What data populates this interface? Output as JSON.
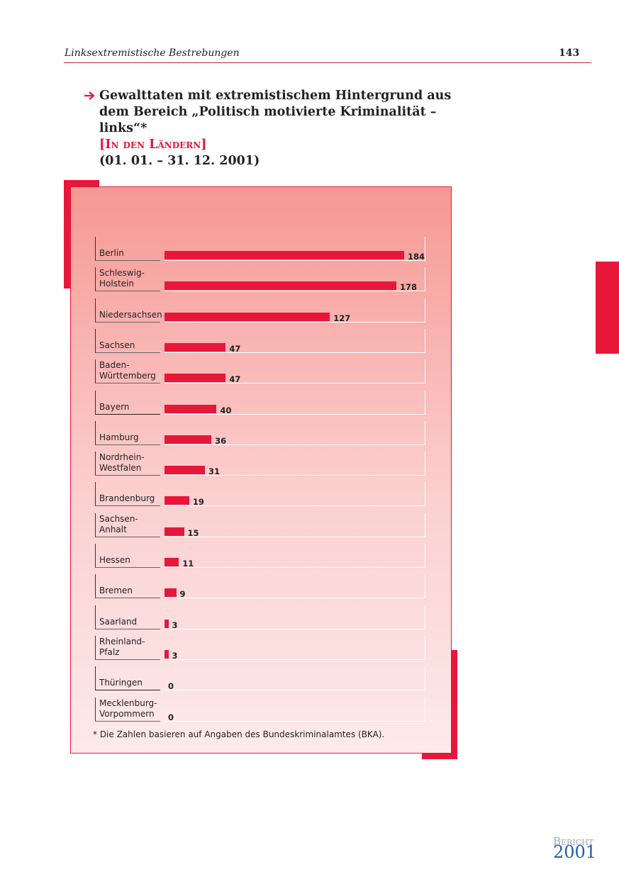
{
  "header": {
    "title": "Linksextremistische Bestrebungen",
    "page": "143"
  },
  "chart_data": {
    "type": "bar",
    "title": "Gewalttaten mit extremistischem Hintergrund aus dem Bereich „Politisch motivierte Kriminalität – links“*",
    "subtitle": "[In den Ländern]",
    "period": "(01. 01. – 31. 12. 2001)",
    "categories": [
      "Berlin",
      "Schleswig-\nHolstein",
      "Niedersachsen",
      "Sachsen",
      "Baden-\nWürttemberg",
      "Bayern",
      "Hamburg",
      "Nordrhein-\nWestfalen",
      "Brandenburg",
      "Sachsen-\nAnhalt",
      "Hessen",
      "Bremen",
      "Saarland",
      "Rheinland-\nPfalz",
      "Thüringen",
      "Mecklenburg-\nVorpommern"
    ],
    "values": [
      184,
      178,
      127,
      47,
      47,
      40,
      36,
      31,
      19,
      15,
      11,
      9,
      3,
      3,
      0,
      0
    ],
    "color": "#e8173a",
    "footnote": "* Die Zahlen basieren auf Angaben des Bundeskriminalamtes (BKA)."
  },
  "footer": {
    "label": "Bericht",
    "year": "2001"
  }
}
